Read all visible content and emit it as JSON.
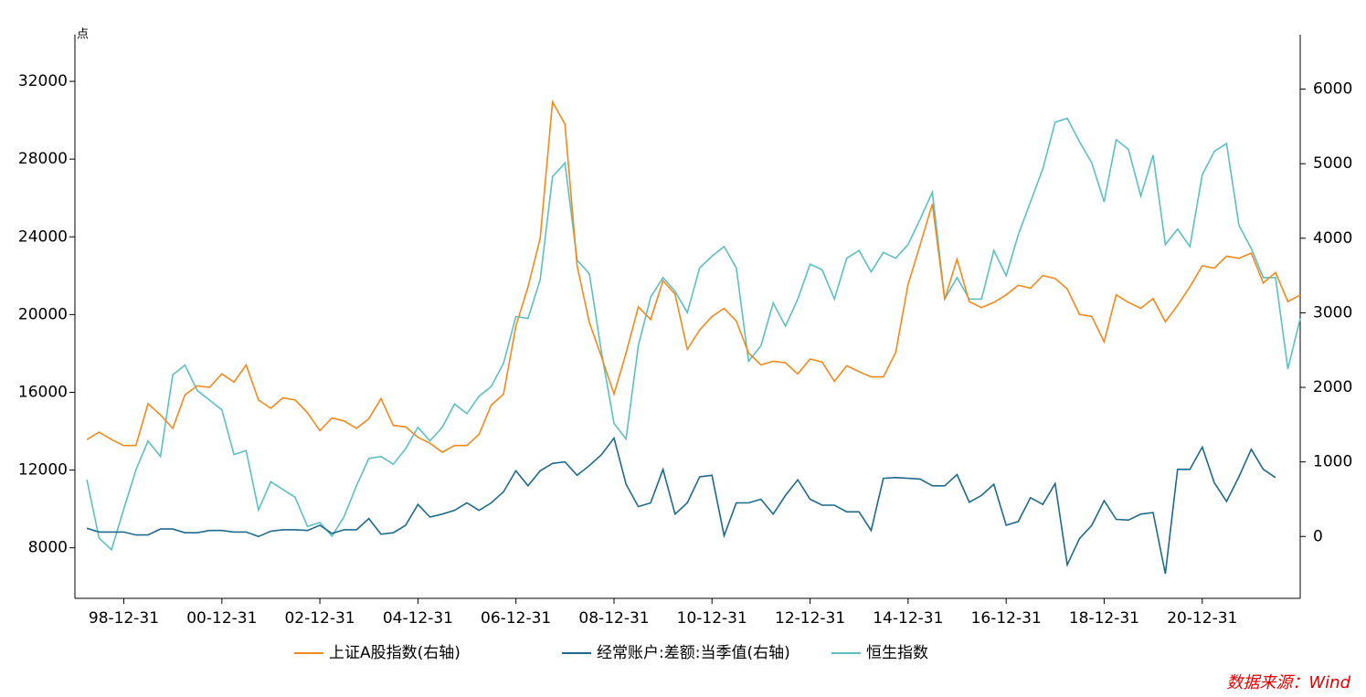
{
  "chart_data": {
    "type": "line",
    "y_unit": "点",
    "source": "数据来源：Wind",
    "x": [
      "98-03-31",
      "98-06-30",
      "98-09-30",
      "98-12-31",
      "99-03-31",
      "99-06-30",
      "99-09-30",
      "99-12-31",
      "00-03-31",
      "00-06-30",
      "00-09-30",
      "00-12-31",
      "01-03-31",
      "01-06-30",
      "01-09-30",
      "01-12-31",
      "02-03-31",
      "02-06-30",
      "02-09-30",
      "02-12-31",
      "03-03-31",
      "03-06-30",
      "03-09-30",
      "03-12-31",
      "04-03-31",
      "04-06-30",
      "04-09-30",
      "04-12-31",
      "05-03-31",
      "05-06-30",
      "05-09-30",
      "05-12-31",
      "06-03-31",
      "06-06-30",
      "06-09-30",
      "06-12-31",
      "07-03-31",
      "07-06-30",
      "07-09-30",
      "07-12-31",
      "08-03-31",
      "08-06-30",
      "08-09-30",
      "08-12-31",
      "09-03-31",
      "09-06-30",
      "09-09-30",
      "09-12-31",
      "10-03-31",
      "10-06-30",
      "10-09-30",
      "10-12-31",
      "11-03-31",
      "11-06-30",
      "11-09-30",
      "11-12-31",
      "12-03-31",
      "12-06-30",
      "12-09-30",
      "12-12-31",
      "13-03-31",
      "13-06-30",
      "13-09-30",
      "13-12-31",
      "14-03-31",
      "14-06-30",
      "14-09-30",
      "14-12-31",
      "15-03-31",
      "15-06-30",
      "15-09-30",
      "15-12-31",
      "16-03-31",
      "16-06-30",
      "16-09-30",
      "16-12-31",
      "17-03-31",
      "17-06-30",
      "17-09-30",
      "17-12-31",
      "18-03-31",
      "18-06-30",
      "18-09-30",
      "18-12-31",
      "19-03-31",
      "19-06-30",
      "19-09-30",
      "19-12-31",
      "20-03-31",
      "20-06-30",
      "20-09-30",
      "20-12-31",
      "21-03-31",
      "21-06-30",
      "21-09-30",
      "21-12-31",
      "22-03-31",
      "22-06-30",
      "22-09-30",
      "22-12-31"
    ],
    "xlim": [
      "98-01-01",
      "22-12-31"
    ],
    "xticks": [
      "98-12-31",
      "00-12-31",
      "02-12-31",
      "04-12-31",
      "06-12-31",
      "08-12-31",
      "10-12-31",
      "12-12-31",
      "14-12-31",
      "16-12-31",
      "18-12-31",
      "20-12-31"
    ],
    "ylim": [
      5400,
      34400
    ],
    "yticks": [
      8000,
      12000,
      16000,
      20000,
      24000,
      28000,
      32000
    ],
    "y2lim": [
      -830,
      6730
    ],
    "y2ticks": [
      0,
      1000,
      2000,
      3000,
      4000,
      5000,
      6000
    ],
    "series": [
      {
        "name": "上证A股指数(右轴)",
        "color": "#f08a1d",
        "axis": "y2",
        "values": [
          1300,
          1400,
          1300,
          1220,
          1220,
          1780,
          1630,
          1450,
          1900,
          2020,
          2000,
          2180,
          2070,
          2300,
          1830,
          1720,
          1860,
          1830,
          1660,
          1420,
          1590,
          1550,
          1450,
          1580,
          1850,
          1490,
          1470,
          1330,
          1250,
          1130,
          1220,
          1220,
          1370,
          1760,
          1910,
          2820,
          3350,
          4000,
          5830,
          5530,
          3630,
          2870,
          2400,
          1910,
          2460,
          3080,
          2910,
          3430,
          3250,
          2510,
          2770,
          2950,
          3060,
          2890,
          2460,
          2300,
          2350,
          2330,
          2180,
          2380,
          2340,
          2080,
          2290,
          2210,
          2140,
          2140,
          2470,
          3380,
          3910,
          4460,
          3180,
          3720,
          3150,
          3070,
          3140,
          3240,
          3370,
          3330,
          3500,
          3460,
          3320,
          2980,
          2950,
          2610,
          3240,
          3140,
          3060,
          3190,
          2880,
          3100,
          3350,
          3630,
          3600,
          3760,
          3730,
          3800,
          3400,
          3540,
          3150,
          3240
        ]
      },
      {
        "name": "经常账户:差额:当季值(右轴)",
        "color": "#1d6a8a",
        "axis": "y2",
        "values": [
          110,
          60,
          60,
          60,
          20,
          20,
          100,
          100,
          50,
          50,
          80,
          80,
          60,
          60,
          0,
          70,
          90,
          90,
          80,
          150,
          40,
          90,
          90,
          240,
          30,
          50,
          150,
          430,
          260,
          300,
          350,
          450,
          350,
          450,
          600,
          880,
          680,
          880,
          980,
          1000,
          820,
          950,
          1100,
          1320,
          700,
          400,
          450,
          900,
          300,
          450,
          800,
          820,
          10,
          450,
          450,
          500,
          300,
          550,
          760,
          500,
          420,
          420,
          330,
          330,
          80,
          780,
          790,
          780,
          770,
          680,
          680,
          830,
          460,
          550,
          700,
          150,
          200,
          520,
          430,
          710,
          -380,
          -30,
          150,
          480,
          230,
          220,
          300,
          320,
          -500,
          900,
          900,
          1200,
          720,
          470,
          800,
          1170,
          900,
          790,
          null,
          null
        ]
      },
      {
        "name": "恒生指数",
        "color": "#5cbfc3",
        "axis": "y",
        "values": [
          11500,
          8500,
          7900,
          10000,
          12000,
          13500,
          12700,
          16900,
          17400,
          16100,
          15600,
          15100,
          12800,
          13000,
          9950,
          11400,
          11000,
          10600,
          9100,
          9300,
          8600,
          9600,
          11200,
          12600,
          12700,
          12300,
          13100,
          14200,
          13500,
          14200,
          15400,
          14900,
          15800,
          16300,
          17500,
          19900,
          19800,
          21800,
          27100,
          27800,
          22800,
          22100,
          18000,
          14400,
          13600,
          18400,
          20900,
          21900,
          21200,
          20100,
          22400,
          23000,
          23500,
          22400,
          17600,
          18400,
          20600,
          19400,
          20800,
          22600,
          22300,
          20800,
          22900,
          23300,
          22200,
          23200,
          22900,
          23600,
          24900,
          26300,
          20800,
          21900,
          20800,
          20800,
          23300,
          22000,
          24100,
          25800,
          27500,
          29900,
          30100,
          28900,
          27800,
          25800,
          29000,
          28500,
          26100,
          28200,
          23600,
          24400,
          23500,
          27200,
          28400,
          28800,
          24600,
          23400,
          21900,
          21900,
          17200,
          19800
        ]
      }
    ]
  }
}
